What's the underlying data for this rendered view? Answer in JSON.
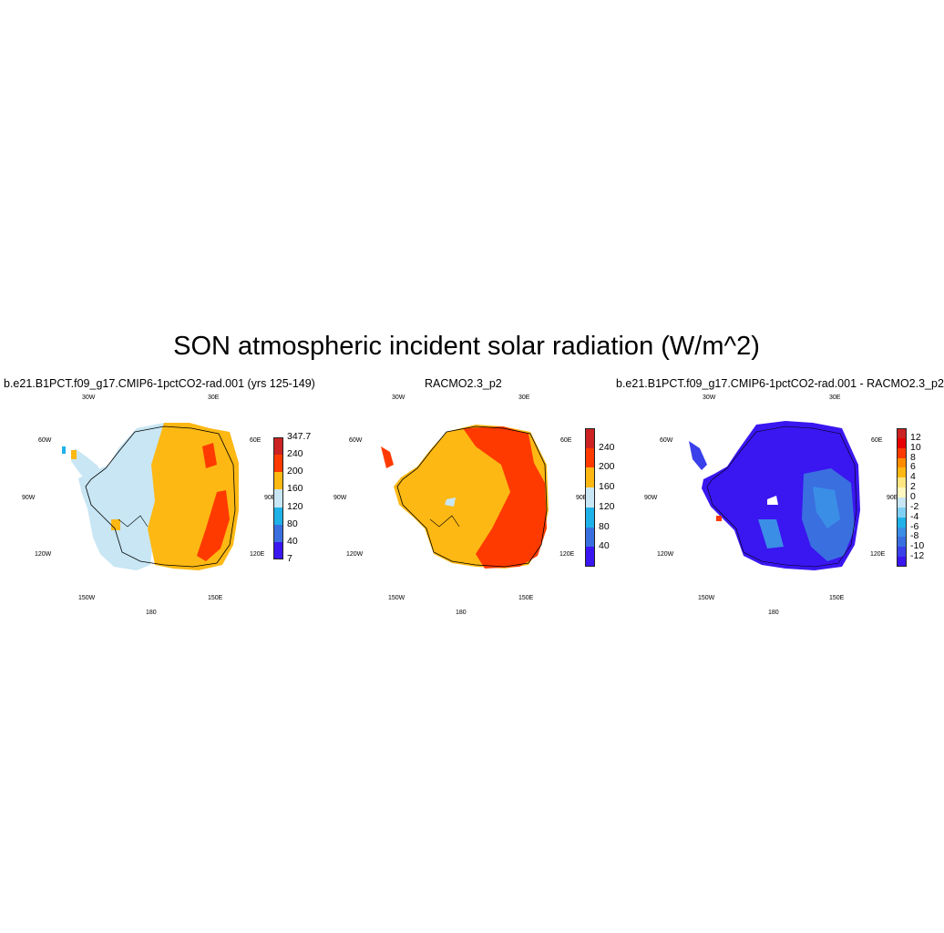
{
  "title": "SON atmospheric incident solar radiation (W/m^2)",
  "panels": [
    {
      "title": "b.e21.B1PCT.f09_g17.CMIP6-1pctCO2-rad.001 (yrs 125-149)",
      "colorbar": {
        "labels": [
          "347.7",
          "240",
          "200",
          "160",
          "120",
          "80",
          "40",
          "7"
        ],
        "colors": [
          "#cc2222",
          "#ff3a00",
          "#fdb813",
          "#c8e6f4",
          "#1fb2e8",
          "#3a6fe0",
          "#3a16f0"
        ]
      }
    },
    {
      "title": "RACMO2.3_p2",
      "colorbar": {
        "labels": [
          "240",
          "200",
          "160",
          "120",
          "80",
          "40"
        ],
        "colors": [
          "#cc2222",
          "#ff3a00",
          "#fdb813",
          "#c8e6f4",
          "#1fb2e8",
          "#3a6fe0",
          "#3a16f0"
        ]
      }
    },
    {
      "title": "b.e21.B1PCT.f09_g17.CMIP6-1pctCO2-rad.001 - RACMO2.3_p2",
      "colorbar": {
        "labels": [
          "12",
          "10",
          "8",
          "6",
          "4",
          "2",
          "0",
          "-2",
          "-4",
          "-6",
          "-8",
          "-10",
          "-12"
        ],
        "colors": [
          "#cc2222",
          "#e60000",
          "#ff3a00",
          "#ff8c00",
          "#fdb813",
          "#ffe680",
          "#fff8c0",
          "#c8e6f4",
          "#7fd0f5",
          "#1fb2e8",
          "#3a8ee6",
          "#3a6fe0",
          "#3a40ea",
          "#3a16f0"
        ]
      }
    }
  ],
  "longitude_labels": [
    "30W",
    "30E",
    "60W",
    "60E",
    "90W",
    "90E",
    "120W",
    "120E",
    "150W",
    "150E",
    "180"
  ]
}
